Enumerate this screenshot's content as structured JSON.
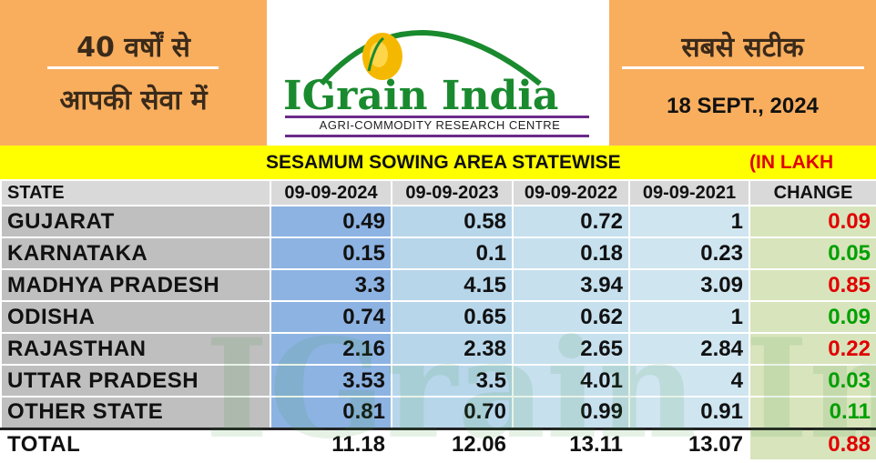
{
  "header": {
    "left_line1": "40 वर्षों से",
    "left_line2": "आपकी सेवा में",
    "right_tagline": "सबसे सटीक",
    "date": "18 SEPT., 2024",
    "logo_brand": "IGrain India",
    "logo_subtitle": "AGRI-COMMODITY RESEARCH CENTRE"
  },
  "title": "SESAMUM SOWING AREA STATEWISE",
  "unit": "(IN LAKH",
  "watermark": "IGrain India",
  "colors": {
    "header_orange": "#F9AE5E",
    "title_yellow": "#FFFF00",
    "positive_change": "#00a000",
    "negative_change": "#e00000"
  },
  "table": {
    "headers": [
      "STATE",
      "09-09-2024",
      "09-09-2023",
      "09-09-2022",
      "09-09-2021",
      "CHANGE"
    ],
    "rows": [
      {
        "state": "GUJARAT",
        "v2024": "0.49",
        "v2023": "0.58",
        "v2022": "0.72",
        "v2021": "1",
        "change": "0.09",
        "change_color": "red"
      },
      {
        "state": "KARNATAKA",
        "v2024": "0.15",
        "v2023": "0.1",
        "v2022": "0.18",
        "v2021": "0.23",
        "change": "0.05",
        "change_color": "green"
      },
      {
        "state": "MADHYA PRADESH",
        "v2024": "3.3",
        "v2023": "4.15",
        "v2022": "3.94",
        "v2021": "3.09",
        "change": "0.85",
        "change_color": "red"
      },
      {
        "state": "ODISHA",
        "v2024": "0.74",
        "v2023": "0.65",
        "v2022": "0.62",
        "v2021": "1",
        "change": "0.09",
        "change_color": "green"
      },
      {
        "state": "RAJASTHAN",
        "v2024": "2.16",
        "v2023": "2.38",
        "v2022": "2.65",
        "v2021": "2.84",
        "change": "0.22",
        "change_color": "red"
      },
      {
        "state": "UTTAR PRADESH",
        "v2024": "3.53",
        "v2023": "3.5",
        "v2022": "4.01",
        "v2021": "4",
        "change": "0.03",
        "change_color": "green"
      },
      {
        "state": "OTHER STATE",
        "v2024": "0.81",
        "v2023": "0.70",
        "v2022": "0.99",
        "v2021": "0.91",
        "change": "0.11",
        "change_color": "green"
      }
    ],
    "total": {
      "state": "TOTAL",
      "v2024": "11.18",
      "v2023": "12.06",
      "v2022": "13.11",
      "v2021": "13.07",
      "change": "0.88",
      "change_color": "red"
    }
  }
}
